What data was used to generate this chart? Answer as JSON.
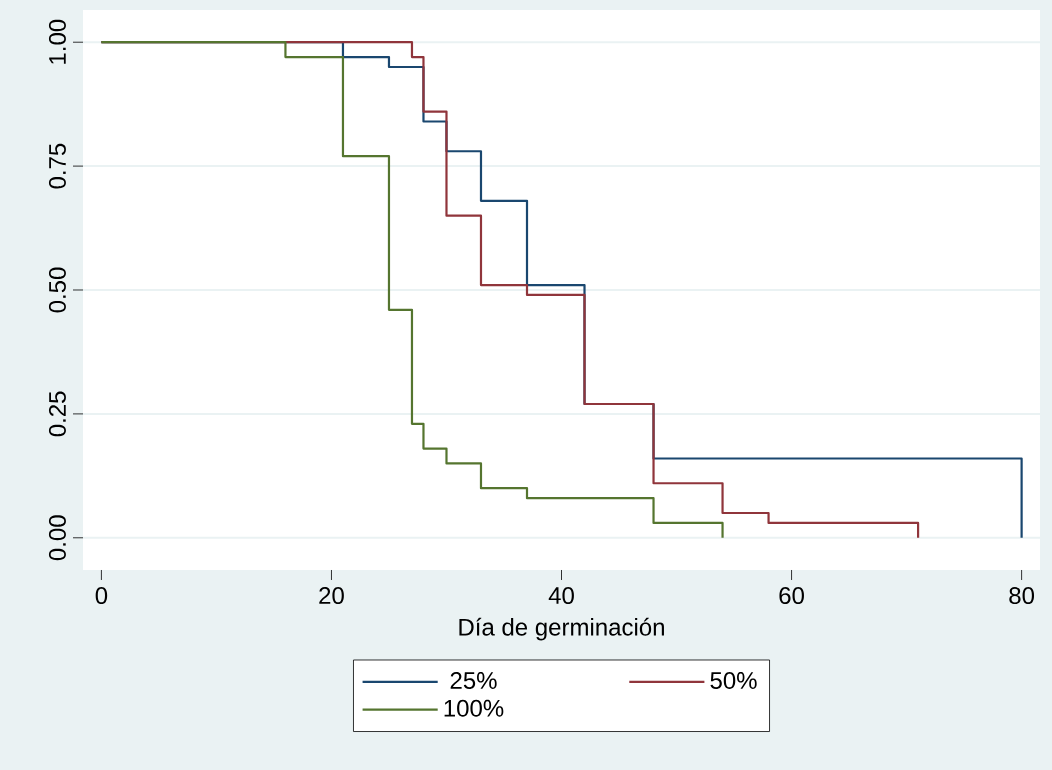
{
  "chart_data": {
    "type": "step",
    "xlabel": "Día de germinación",
    "xlim": [
      -1.6,
      81.6
    ],
    "xticks": [
      0,
      20,
      40,
      60,
      80
    ],
    "ylim": [
      0,
      1
    ],
    "yticks": [
      {
        "value": 0,
        "label": "0.00"
      },
      {
        "value": 0.25,
        "label": "0.25"
      },
      {
        "value": 0.5,
        "label": "0.50"
      },
      {
        "value": 0.75,
        "label": "0.75"
      },
      {
        "value": 1,
        "label": "1.00"
      }
    ],
    "grid": "y",
    "legend": "bottom",
    "series": [
      {
        "name": "25%",
        "color": "#1a476f",
        "x": [
          0,
          21,
          25,
          28,
          30,
          33,
          37,
          42,
          48,
          80
        ],
        "values": [
          1,
          0.97,
          0.95,
          0.84,
          0.78,
          0.68,
          0.51,
          0.27,
          0.16,
          0
        ]
      },
      {
        "name": "50%",
        "color": "#90353b",
        "x": [
          0,
          27,
          28,
          30,
          33,
          37,
          42,
          48,
          54,
          58,
          71
        ],
        "values": [
          1,
          0.97,
          0.86,
          0.65,
          0.51,
          0.49,
          0.27,
          0.11,
          0.05,
          0.03,
          0
        ]
      },
      {
        "name": "100%",
        "color": "#55752f",
        "x": [
          0,
          16,
          21,
          25,
          27,
          28,
          30,
          33,
          37,
          48,
          54
        ],
        "values": [
          1,
          0.97,
          0.77,
          0.46,
          0.23,
          0.18,
          0.15,
          0.1,
          0.08,
          0.03,
          0
        ]
      }
    ]
  }
}
